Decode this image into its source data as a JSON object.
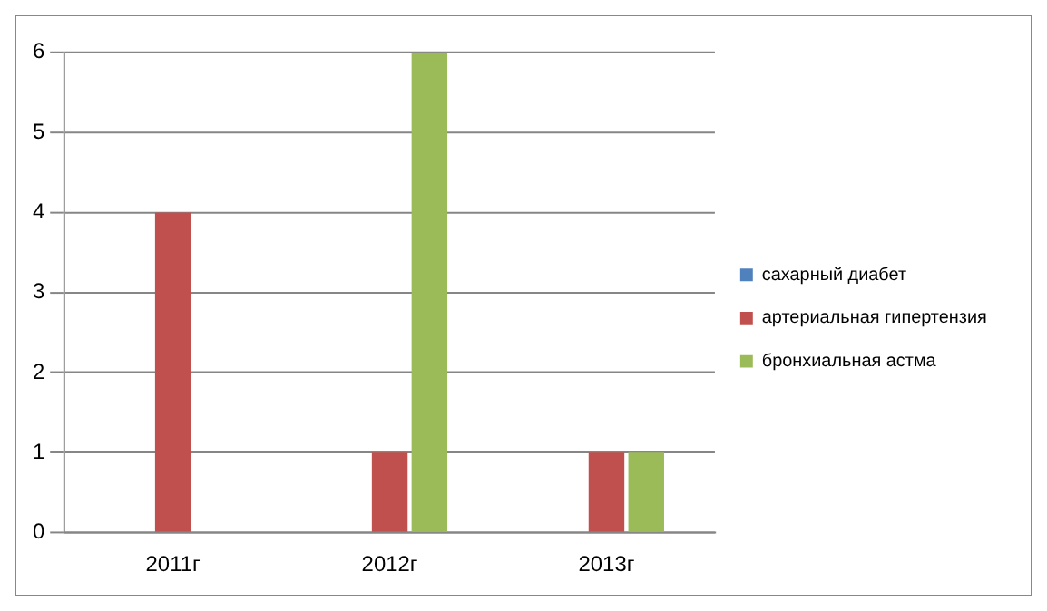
{
  "chart_data": {
    "type": "bar",
    "categories": [
      "2011г",
      "2012г",
      "2013г"
    ],
    "series": [
      {
        "name": "сахарный диабет",
        "color": "#4f81bd",
        "values": [
          0,
          0,
          0
        ]
      },
      {
        "name": "артериальная гипертензия",
        "color": "#c0504d",
        "values": [
          4,
          1,
          1
        ]
      },
      {
        "name": "бронхиальная астма",
        "color": "#9bbb59",
        "values": [
          0,
          6,
          1
        ]
      }
    ],
    "ylim": [
      0,
      6
    ],
    "yticks": [
      0,
      1,
      2,
      3,
      4,
      5,
      6
    ],
    "grid": "y",
    "legend": "right"
  }
}
